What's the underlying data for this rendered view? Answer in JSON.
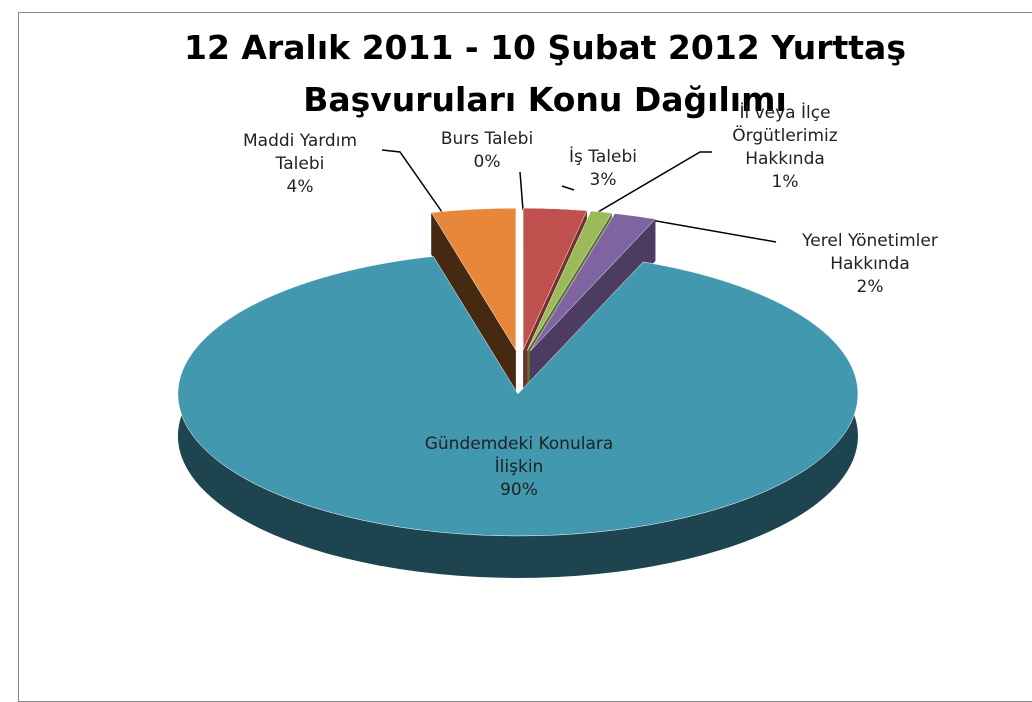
{
  "chart_data": {
    "type": "pie3d",
    "title": "12 Aralık 2011 - 10 Şubat 2012 Yurttaş Başvuruları Konu Dağılımı",
    "categories": [
      "Burs Talebi",
      "İş Talebi",
      "İl veya İlçe Örgütlerimiz Hakkında",
      "Yerel Yönetimler Hakkında",
      "Gündemdeki Konulara İlişkin",
      "Maddi Yardım Talebi"
    ],
    "values": [
      0,
      3,
      1,
      2,
      90,
      4
    ],
    "value_labels": [
      "0%",
      "3%",
      "1%",
      "2%",
      "90%",
      "4%"
    ],
    "colors": [
      "#dce6f2",
      "#c0504d",
      "#9bbb59",
      "#8064a2",
      "#4198af",
      "#e8873a"
    ]
  }
}
